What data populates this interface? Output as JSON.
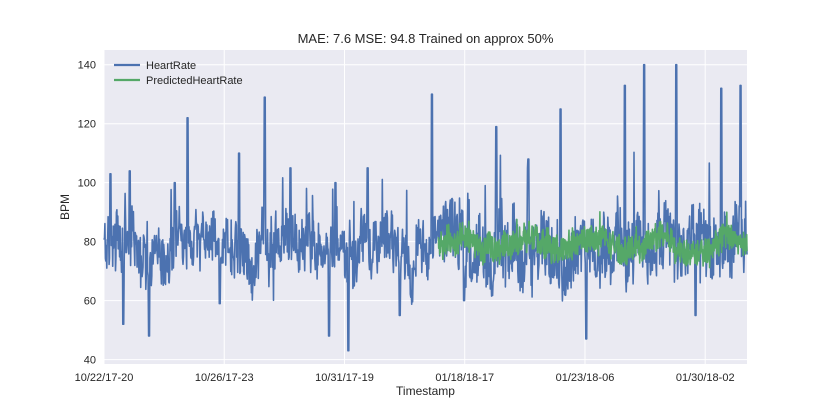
{
  "chart_data": {
    "type": "line",
    "title": "MAE: 7.6    MSE: 94.8    Trained on approx 50%",
    "xlabel": "Timestamp",
    "ylabel": "BPM",
    "x_tick_labels": [
      "10/22/17-20",
      "10/26/17-23",
      "10/31/17-19",
      "01/18/18-17",
      "01/23/18-06",
      "01/30/18-02"
    ],
    "y_ticks": [
      40,
      60,
      80,
      100,
      120,
      140
    ],
    "ylim": [
      38.5,
      145
    ],
    "xlim": [
      0,
      1
    ],
    "grid": true,
    "legend_position": "top-left",
    "series": [
      {
        "name": "HeartRate",
        "color": "#4c72b0",
        "x_range": [
          0,
          1
        ],
        "baseline_y": 78,
        "noise_amplitude": 12,
        "peak_samples": [
          {
            "x": 0.01,
            "y": 103
          },
          {
            "x": 0.03,
            "y": 52
          },
          {
            "x": 0.04,
            "y": 104
          },
          {
            "x": 0.07,
            "y": 48
          },
          {
            "x": 0.11,
            "y": 100
          },
          {
            "x": 0.13,
            "y": 122
          },
          {
            "x": 0.18,
            "y": 59
          },
          {
            "x": 0.21,
            "y": 110
          },
          {
            "x": 0.25,
            "y": 129
          },
          {
            "x": 0.29,
            "y": 105
          },
          {
            "x": 0.35,
            "y": 48
          },
          {
            "x": 0.36,
            "y": 100
          },
          {
            "x": 0.38,
            "y": 43
          },
          {
            "x": 0.41,
            "y": 105
          },
          {
            "x": 0.46,
            "y": 55
          },
          {
            "x": 0.51,
            "y": 130
          },
          {
            "x": 0.56,
            "y": 60
          },
          {
            "x": 0.61,
            "y": 119
          },
          {
            "x": 0.66,
            "y": 108
          },
          {
            "x": 0.71,
            "y": 125
          },
          {
            "x": 0.75,
            "y": 47
          },
          {
            "x": 0.81,
            "y": 133
          },
          {
            "x": 0.84,
            "y": 140
          },
          {
            "x": 0.89,
            "y": 140
          },
          {
            "x": 0.92,
            "y": 55
          },
          {
            "x": 0.96,
            "y": 132
          },
          {
            "x": 0.99,
            "y": 133
          }
        ]
      },
      {
        "name": "PredictedHeartRate",
        "color": "#55a868",
        "x_range": [
          0.52,
          1
        ],
        "baseline_y": 79,
        "noise_amplitude": 4,
        "range_y": [
          68,
          95
        ]
      }
    ]
  }
}
